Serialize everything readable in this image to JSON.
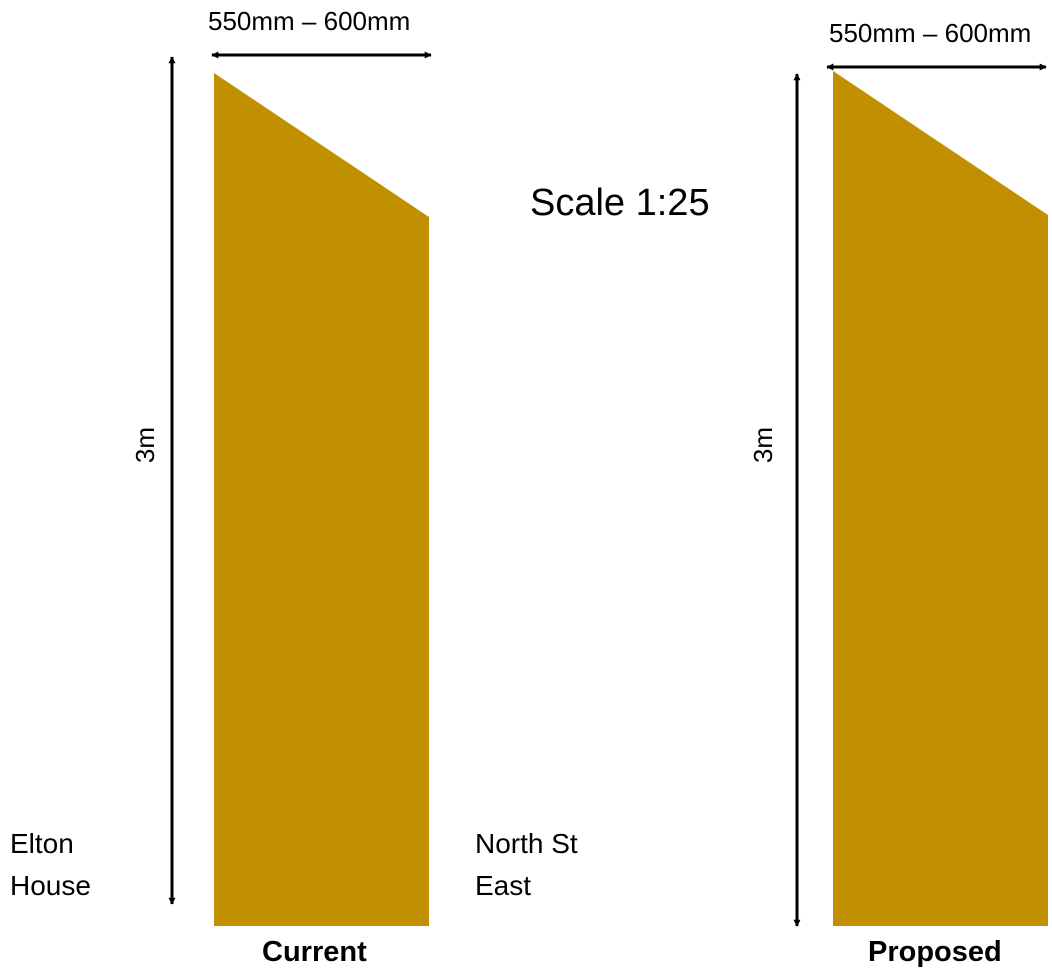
{
  "colors": {
    "panel_fill": "#C09000",
    "arrow": "#000000",
    "background": "#ffffff"
  },
  "current": {
    "width_label": "550mm – 600mm",
    "height_label": "3m",
    "caption": "Current",
    "left_label_line1": "Elton",
    "left_label_line2": "House",
    "right_label_line1": "North St",
    "right_label_line2": "East"
  },
  "proposed": {
    "width_label": "550mm – 600mm",
    "height_label": "3m",
    "caption": "Proposed"
  },
  "scale_label": "Scale 1:25"
}
